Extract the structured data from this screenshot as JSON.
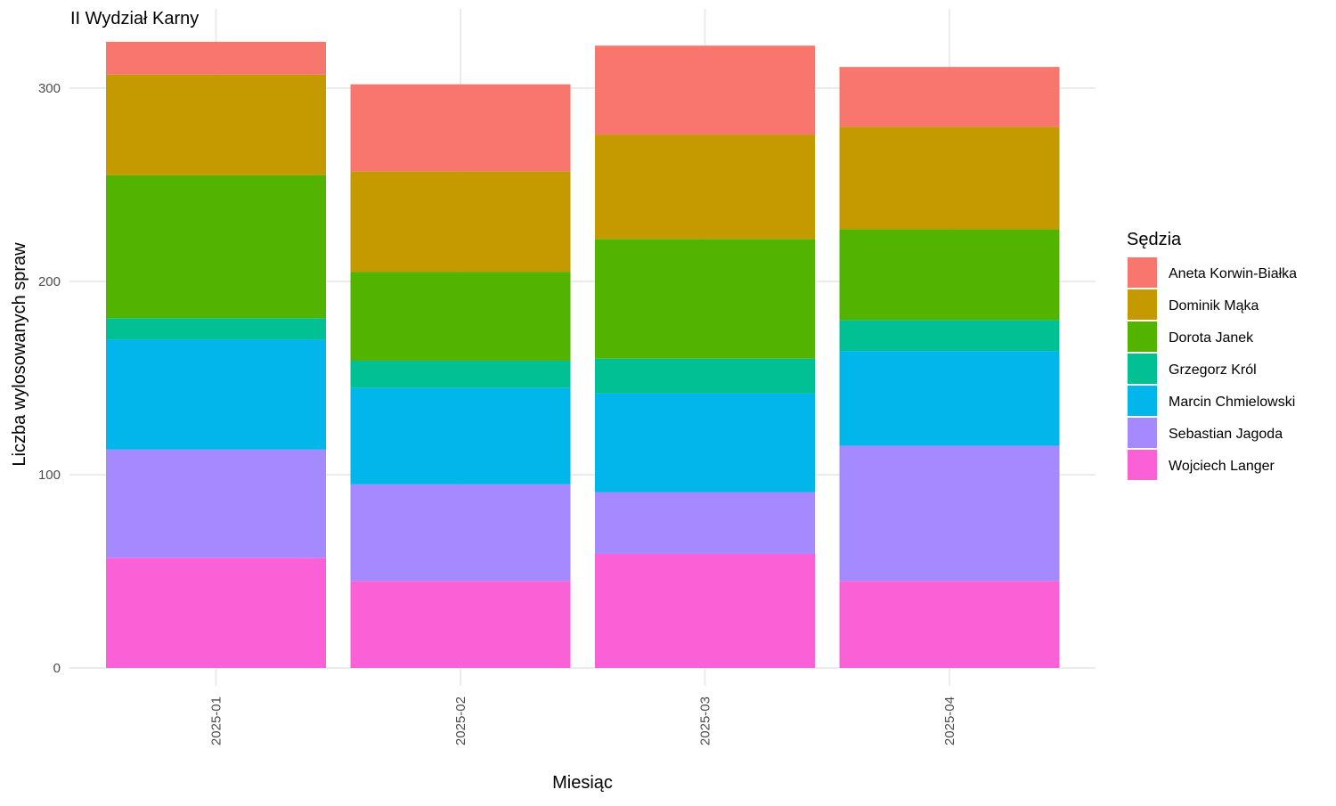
{
  "chart_data": {
    "type": "bar",
    "stacked": true,
    "title": "II Wydział Karny",
    "xlabel": "Miesiąc",
    "ylabel": "Liczba wylosowanych spraw",
    "categories": [
      "2025-01",
      "2025-02",
      "2025-03",
      "2025-04"
    ],
    "ylim": [
      0,
      330
    ],
    "yticks": [
      0,
      100,
      200,
      300
    ],
    "grid": true,
    "legend_title": "Sędzia",
    "legend_position": "right",
    "series": [
      {
        "name": "Aneta Korwin-Białka",
        "color": "#F8766D",
        "values": [
          17,
          45,
          46,
          31
        ]
      },
      {
        "name": "Dominik Mąka",
        "color": "#C49A00",
        "values": [
          52,
          52,
          54,
          53
        ]
      },
      {
        "name": "Dorota Janek",
        "color": "#53B400",
        "values": [
          74,
          46,
          62,
          47
        ]
      },
      {
        "name": "Grzegorz Król",
        "color": "#00C094",
        "values": [
          11,
          14,
          18,
          16
        ]
      },
      {
        "name": "Marcin Chmielowski",
        "color": "#00B6EB",
        "values": [
          57,
          50,
          51,
          49
        ]
      },
      {
        "name": "Sebastian Jagoda",
        "color": "#A58AFF",
        "values": [
          56,
          50,
          32,
          70
        ]
      },
      {
        "name": "Wojciech Langer",
        "color": "#FB61D7",
        "values": [
          57,
          45,
          59,
          45
        ]
      }
    ]
  }
}
